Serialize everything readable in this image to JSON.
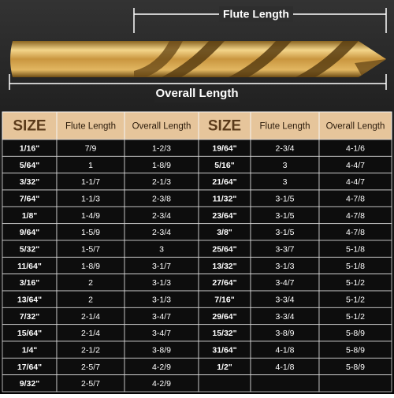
{
  "labels": {
    "flute_length": "Flute Length",
    "overall_length": "Overall Length"
  },
  "table": {
    "header": [
      "SIZE",
      "Flute Length",
      "Overall Length",
      "SIZE",
      "Flute Length",
      "Overall Length"
    ],
    "rows": [
      [
        "1/16\"",
        "7/9",
        "1-2/3",
        "19/64\"",
        "2-3/4",
        "4-1/6"
      ],
      [
        "5/64\"",
        "1",
        "1-8/9",
        "5/16\"",
        "3",
        "4-4/7"
      ],
      [
        "3/32\"",
        "1-1/7",
        "2-1/3",
        "21/64\"",
        "3",
        "4-4/7"
      ],
      [
        "7/64\"",
        "1-1/3",
        "2-3/8",
        "11/32\"",
        "3-1/5",
        "4-7/8"
      ],
      [
        "1/8\"",
        "1-4/9",
        "2-3/4",
        "23/64\"",
        "3-1/5",
        "4-7/8"
      ],
      [
        "9/64\"",
        "1-5/9",
        "2-3/4",
        "3/8\"",
        "3-1/5",
        "4-7/8"
      ],
      [
        "5/32\"",
        "1-5/7",
        "3",
        "25/64\"",
        "3-3/7",
        "5-1/8"
      ],
      [
        "11/64\"",
        "1-8/9",
        "3-1/7",
        "13/32\"",
        "3-1/3",
        "5-1/8"
      ],
      [
        "3/16\"",
        "2",
        "3-1/3",
        "27/64\"",
        "3-4/7",
        "5-1/2"
      ],
      [
        "13/64\"",
        "2",
        "3-1/3",
        "7/16\"",
        "3-3/4",
        "5-1/2"
      ],
      [
        "7/32\"",
        "2-1/4",
        "3-4/7",
        "29/64\"",
        "3-3/4",
        "5-1/2"
      ],
      [
        "15/64\"",
        "2-1/4",
        "3-4/7",
        "15/32\"",
        "3-8/9",
        "5-8/9"
      ],
      [
        "1/4\"",
        "2-1/2",
        "3-8/9",
        "31/64\"",
        "4-1/8",
        "5-8/9"
      ],
      [
        "17/64\"",
        "2-5/7",
        "4-2/9",
        "1/2\"",
        "4-1/8",
        "5-8/9"
      ],
      [
        "9/32\"",
        "2-5/7",
        "4-2/9"
      ]
    ]
  }
}
